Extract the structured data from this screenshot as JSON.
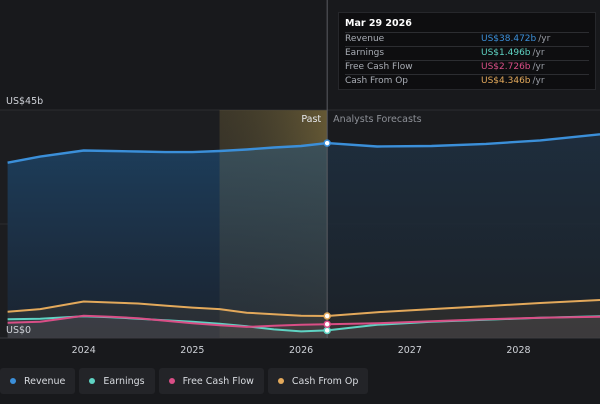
{
  "chart_data": {
    "type": "area",
    "y_top_label": "US$45b",
    "y_zero_label": "US$0",
    "ylim": [
      0,
      45
    ],
    "x_ticks": [
      {
        "label": "2024",
        "x": 2024.0
      },
      {
        "label": "2025",
        "x": 2025.0
      },
      {
        "label": "2026",
        "x": 2026.0
      },
      {
        "label": "2027",
        "x": 2027.0
      },
      {
        "label": "2028",
        "x": 2028.0
      }
    ],
    "x_range": [
      2023.23,
      2028.75
    ],
    "past_label": "Past",
    "forecast_label": "Analysts Forecasts",
    "past_band_start": 2025.25,
    "divider_x": 2026.24,
    "series": [
      {
        "name": "Revenue",
        "color": "#3b8fd9",
        "x": [
          2023.3,
          2023.6,
          2024.0,
          2024.25,
          2024.5,
          2024.75,
          2025.0,
          2025.25,
          2025.5,
          2025.75,
          2026.0,
          2026.24,
          2026.7,
          2027.2,
          2027.7,
          2028.2,
          2028.75
        ],
        "values": [
          34.6,
          35.8,
          37.0,
          36.9,
          36.8,
          36.7,
          36.7,
          36.9,
          37.2,
          37.6,
          37.9,
          38.472,
          37.8,
          37.9,
          38.3,
          39.0,
          40.2
        ]
      },
      {
        "name": "Earnings",
        "color": "#5fd3c3",
        "x": [
          2023.3,
          2023.6,
          2024.0,
          2024.25,
          2024.5,
          2024.75,
          2025.0,
          2025.25,
          2025.5,
          2025.75,
          2026.0,
          2026.24,
          2026.7,
          2027.2,
          2027.7,
          2028.2,
          2028.75
        ],
        "values": [
          3.7,
          3.8,
          4.3,
          4.1,
          3.8,
          3.5,
          3.2,
          2.8,
          2.3,
          1.7,
          1.3,
          1.496,
          2.6,
          3.2,
          3.6,
          4.0,
          4.3
        ]
      },
      {
        "name": "Free Cash Flow",
        "color": "#d94e86",
        "x": [
          2023.3,
          2023.6,
          2024.0,
          2024.25,
          2024.5,
          2024.75,
          2025.0,
          2025.25,
          2025.5,
          2025.75,
          2026.0,
          2026.24,
          2026.7,
          2027.2,
          2027.7,
          2028.2,
          2028.75
        ],
        "values": [
          3.0,
          3.2,
          4.4,
          4.2,
          3.9,
          3.4,
          2.9,
          2.5,
          2.2,
          2.4,
          2.6,
          2.726,
          2.9,
          3.3,
          3.7,
          4.0,
          4.2
        ]
      },
      {
        "name": "Cash From Op",
        "color": "#e3a95b",
        "x": [
          2023.3,
          2023.6,
          2024.0,
          2024.25,
          2024.5,
          2024.75,
          2025.0,
          2025.25,
          2025.5,
          2025.75,
          2026.0,
          2026.24,
          2026.7,
          2027.2,
          2027.7,
          2028.2,
          2028.75
        ],
        "values": [
          5.2,
          5.7,
          7.2,
          7.0,
          6.8,
          6.4,
          6.0,
          5.7,
          5.0,
          4.7,
          4.4,
          4.346,
          5.1,
          5.7,
          6.3,
          6.9,
          7.5
        ]
      }
    ]
  },
  "tooltip": {
    "date": "Mar 29 2026",
    "unit": "/yr",
    "rows": [
      {
        "label": "Revenue",
        "value": "US$38.472b",
        "color": "#3b8fd9"
      },
      {
        "label": "Earnings",
        "value": "US$1.496b",
        "color": "#5fd3c3"
      },
      {
        "label": "Free Cash Flow",
        "value": "US$2.726b",
        "color": "#d94e86"
      },
      {
        "label": "Cash From Op",
        "value": "US$4.346b",
        "color": "#e3a95b"
      }
    ]
  },
  "legend": [
    {
      "label": "Revenue",
      "color": "#3b8fd9",
      "icon": "dot"
    },
    {
      "label": "Earnings",
      "color": "#5fd3c3",
      "icon": "dot"
    },
    {
      "label": "Free Cash Flow",
      "color": "#d94e86",
      "icon": "dot"
    },
    {
      "label": "Cash From Op",
      "color": "#e3a95b",
      "icon": "dot"
    }
  ]
}
